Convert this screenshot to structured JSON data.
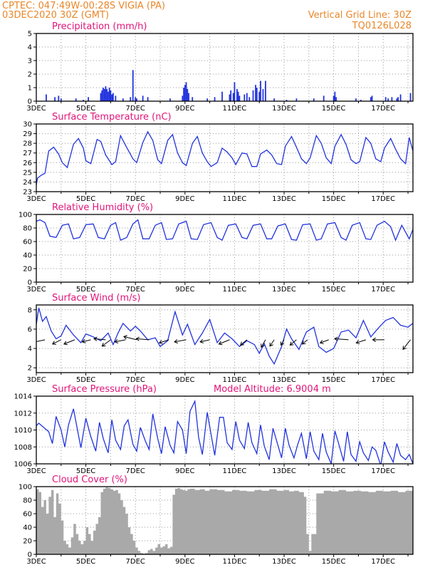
{
  "header": {
    "source_line": "CPTEC:   047:49W-00:28S   VIGIA (PA)",
    "date_line": "03DEC2020 30Z (GMT)",
    "grid_note": "Vertical Grid Line: 30Z",
    "code": "TQ0126L028"
  },
  "x_axis": {
    "labels": [
      "3DEC",
      "5DEC",
      "7DEC",
      "9DEC",
      "11DEC",
      "13DEC",
      "15DEC",
      "17DEC"
    ],
    "label_days": [
      0,
      2,
      4,
      6,
      8,
      10,
      12,
      14
    ],
    "range_days": [
      0,
      15.2
    ]
  },
  "colors": {
    "line": "#2233dd",
    "header": "#e8872a",
    "title": "#e0157a",
    "cloud": "#a9a9a9",
    "grid": "#9a9a9a"
  },
  "chart_data": [
    {
      "type": "bar",
      "title": "Precipitation (mm/h)",
      "ylim": [
        0,
        5
      ],
      "yticks": [
        0,
        1,
        2,
        3,
        4,
        5
      ],
      "x_unit": "days since 3DEC",
      "x": [
        0.4,
        0.75,
        0.9,
        1.0,
        1.6,
        1.9,
        2.1,
        2.6,
        2.65,
        2.7,
        2.75,
        2.8,
        2.85,
        2.9,
        2.95,
        3.0,
        3.05,
        3.1,
        3.2,
        3.5,
        3.8,
        3.9,
        4.0,
        4.05,
        4.3,
        4.5,
        5.4,
        5.9,
        5.95,
        6.0,
        6.05,
        6.1,
        6.15,
        6.3,
        6.9,
        7.2,
        7.5,
        7.8,
        7.85,
        7.95,
        8.0,
        8.1,
        8.15,
        8.2,
        8.4,
        8.5,
        8.6,
        8.75,
        8.85,
        8.9,
        9.0,
        9.05,
        9.15,
        9.25,
        9.6,
        10.1,
        10.5,
        11.2,
        11.6,
        12.0,
        12.05,
        12.1,
        12.9,
        13.1,
        13.5,
        13.55,
        14.1,
        14.2,
        14.35,
        14.55,
        14.6,
        14.7,
        15.1
      ],
      "values": [
        0.5,
        0.3,
        0.4,
        0.2,
        0.2,
        0.1,
        0.3,
        0.6,
        0.8,
        1.0,
        0.9,
        1.1,
        0.9,
        0.7,
        1.0,
        0.8,
        0.5,
        0.6,
        0.4,
        0.2,
        0.3,
        2.3,
        0.3,
        0.2,
        0.4,
        0.3,
        0.2,
        0.4,
        1.0,
        1.2,
        1.4,
        0.9,
        0.6,
        0.3,
        0.2,
        0.3,
        0.7,
        0.5,
        0.8,
        0.6,
        1.4,
        0.9,
        0.7,
        0.4,
        0.5,
        0.6,
        0.3,
        0.8,
        1.2,
        1.0,
        0.7,
        1.5,
        0.9,
        1.5,
        0.2,
        0.1,
        0.2,
        0.2,
        0.4,
        0.4,
        0.7,
        0.3,
        0.2,
        0.1,
        0.3,
        0.4,
        0.3,
        0.2,
        0.3,
        0.2,
        0.3,
        0.5,
        0.6
      ]
    },
    {
      "type": "line",
      "title": "Surface Temperature (nC)",
      "ylim": [
        23,
        30
      ],
      "yticks": [
        23,
        24,
        25,
        26,
        27,
        28,
        29,
        30
      ],
      "x_unit": "days since 3DEC",
      "x": [
        0,
        0.05,
        0.2,
        0.35,
        0.5,
        0.7,
        0.9,
        1.05,
        1.25,
        1.5,
        1.7,
        1.9,
        2.0,
        2.2,
        2.45,
        2.6,
        2.8,
        3.05,
        3.2,
        3.4,
        3.6,
        3.9,
        4.05,
        4.3,
        4.5,
        4.7,
        4.9,
        5.05,
        5.3,
        5.5,
        5.7,
        5.9,
        6.05,
        6.3,
        6.5,
        6.7,
        6.9,
        7.05,
        7.3,
        7.5,
        7.7,
        7.9,
        8.05,
        8.3,
        8.5,
        8.7,
        8.9,
        9.05,
        9.3,
        9.5,
        9.7,
        9.9,
        10.05,
        10.3,
        10.5,
        10.7,
        10.9,
        11.05,
        11.3,
        11.5,
        11.7,
        11.9,
        12.05,
        12.3,
        12.5,
        12.7,
        12.9,
        13.05,
        13.3,
        13.5,
        13.7,
        13.9,
        14.05,
        14.3,
        14.5,
        14.7,
        14.9,
        15.05,
        15.2
      ],
      "values": [
        23.7,
        24.4,
        24.7,
        24.9,
        27.2,
        27.6,
        26.9,
        26.0,
        25.5,
        27.9,
        28.5,
        27.5,
        26.2,
        25.9,
        28.4,
        28.2,
        26.8,
        25.8,
        26.1,
        28.8,
        27.8,
        26.4,
        26.0,
        28.1,
        29.2,
        28.3,
        26.3,
        25.9,
        28.3,
        28.9,
        27.0,
        26.0,
        25.7,
        28.0,
        28.7,
        27.0,
        26.1,
        25.6,
        26.0,
        27.5,
        27.1,
        26.5,
        25.8,
        27.0,
        26.9,
        25.6,
        25.6,
        26.9,
        27.3,
        26.8,
        25.9,
        25.8,
        27.7,
        28.7,
        27.6,
        26.4,
        25.9,
        26.5,
        28.8,
        28.0,
        26.5,
        25.9,
        27.7,
        28.9,
        27.9,
        26.3,
        25.9,
        26.1,
        28.6,
        28.0,
        26.4,
        26.1,
        27.5,
        28.5,
        27.4,
        26.4,
        25.9,
        28.6,
        27.2
      ]
    },
    {
      "type": "line",
      "title": "Relative Humidity (%)",
      "ylim": [
        0,
        100
      ],
      "yticks": [
        0,
        20,
        40,
        60,
        80,
        100
      ],
      "x_unit": "days since 3DEC",
      "x": [
        0,
        0.15,
        0.35,
        0.55,
        0.8,
        1.05,
        1.3,
        1.5,
        1.75,
        2.0,
        2.3,
        2.5,
        2.75,
        3.0,
        3.2,
        3.4,
        3.65,
        3.9,
        4.1,
        4.3,
        4.55,
        4.8,
        5.05,
        5.25,
        5.5,
        5.75,
        6.05,
        6.25,
        6.5,
        6.75,
        7.05,
        7.3,
        7.5,
        7.75,
        8.05,
        8.3,
        8.5,
        8.75,
        9.05,
        9.3,
        9.5,
        9.75,
        10.05,
        10.3,
        10.5,
        10.75,
        11.05,
        11.3,
        11.5,
        11.75,
        12.05,
        12.3,
        12.5,
        12.75,
        13.05,
        13.3,
        13.5,
        13.75,
        14.05,
        14.3,
        14.5,
        14.75,
        15.05,
        15.2
      ],
      "values": [
        90,
        92,
        88,
        68,
        66,
        84,
        86,
        64,
        66,
        85,
        86,
        66,
        64,
        84,
        88,
        62,
        66,
        86,
        92,
        64,
        64,
        84,
        88,
        63,
        64,
        86,
        90,
        64,
        63,
        85,
        88,
        66,
        62,
        84,
        86,
        66,
        64,
        84,
        86,
        64,
        64,
        83,
        86,
        63,
        62,
        85,
        86,
        62,
        64,
        86,
        88,
        66,
        62,
        84,
        88,
        64,
        63,
        84,
        90,
        82,
        62,
        84,
        64,
        78
      ]
    },
    {
      "type": "line",
      "title": "Surface Wind (m/s)",
      "ylim": [
        1.5,
        8.5
      ],
      "yticks": [
        2,
        4,
        6,
        8
      ],
      "x_unit": "days since 3DEC",
      "x": [
        0,
        0.1,
        0.25,
        0.4,
        0.6,
        0.8,
        1.0,
        1.2,
        1.5,
        1.8,
        2.0,
        2.3,
        2.6,
        2.9,
        3.1,
        3.3,
        3.5,
        3.8,
        4.0,
        4.2,
        4.5,
        4.8,
        5.0,
        5.3,
        5.6,
        5.9,
        6.1,
        6.4,
        6.7,
        7.0,
        7.3,
        7.6,
        7.9,
        8.2,
        8.5,
        8.8,
        9.0,
        9.2,
        9.4,
        9.6,
        9.9,
        10.1,
        10.3,
        10.6,
        10.9,
        11.2,
        11.4,
        11.7,
        12.0,
        12.3,
        12.6,
        12.9,
        13.2,
        13.5,
        13.8,
        14.1,
        14.4,
        14.7,
        15.0,
        15.2
      ],
      "values": [
        6.5,
        8.2,
        6.8,
        7.3,
        5.8,
        5.0,
        5.3,
        6.4,
        5.4,
        4.6,
        5.5,
        5.2,
        4.8,
        5.6,
        4.4,
        5.6,
        6.6,
        5.8,
        6.3,
        5.8,
        4.9,
        5.1,
        4.2,
        4.8,
        7.8,
        5.4,
        6.5,
        4.4,
        5.6,
        7.0,
        4.6,
        5.6,
        5.0,
        4.2,
        4.8,
        4.4,
        3.5,
        4.5,
        3.2,
        2.4,
        4.2,
        6.0,
        5.0,
        3.9,
        5.7,
        6.2,
        4.2,
        3.6,
        4.0,
        5.7,
        5.9,
        5.1,
        6.9,
        5.2,
        6.1,
        6.9,
        7.2,
        6.4,
        6.2,
        6.6
      ],
      "vectors": [
        {
          "x": 0.35,
          "u": 5.5,
          "v": -1.2
        },
        {
          "x": 1.0,
          "u": 4.0,
          "v": -2.0
        },
        {
          "x": 1.55,
          "u": 5.0,
          "v": -2.0
        },
        {
          "x": 2.2,
          "u": 4.0,
          "v": -1.0
        },
        {
          "x": 2.8,
          "u": 5.5,
          "v": 0.5
        },
        {
          "x": 3.0,
          "u": 4.0,
          "v": -3.0
        },
        {
          "x": 3.6,
          "u": 5.0,
          "v": -1.0
        },
        {
          "x": 4.05,
          "u": 6.0,
          "v": 1.5
        },
        {
          "x": 4.55,
          "u": 6.0,
          "v": 0.5
        },
        {
          "x": 5.35,
          "u": 4.5,
          "v": -1.5
        },
        {
          "x": 6.05,
          "u": 5.5,
          "v": -1.0
        },
        {
          "x": 7.0,
          "u": 4.5,
          "v": -1.0
        },
        {
          "x": 7.8,
          "u": 5.0,
          "v": -2.0
        },
        {
          "x": 8.5,
          "u": 3.0,
          "v": -2.5
        },
        {
          "x": 9.25,
          "u": 2.0,
          "v": -3.5
        },
        {
          "x": 9.6,
          "u": 2.0,
          "v": -3.0
        },
        {
          "x": 10.0,
          "u": 1.5,
          "v": -2.5
        },
        {
          "x": 10.5,
          "u": 3.0,
          "v": -2.5
        },
        {
          "x": 10.95,
          "u": 2.5,
          "v": -2.0
        },
        {
          "x": 11.8,
          "u": 4.0,
          "v": -1.5
        },
        {
          "x": 12.6,
          "u": 6.5,
          "v": 0.5
        },
        {
          "x": 13.3,
          "u": 4.5,
          "v": -1.5
        },
        {
          "x": 14.05,
          "u": 5.5,
          "v": 0.0
        },
        {
          "x": 15.1,
          "u": 3.5,
          "v": -4.5
        }
      ]
    },
    {
      "type": "line",
      "title": "Surface Pressure (hPa)",
      "annotation": "Model Altitude: 6.9004 m",
      "ylim": [
        1006,
        1014
      ],
      "yticks": [
        1006,
        1008,
        1010,
        1012,
        1014
      ],
      "x_unit": "days since 3DEC",
      "x": [
        0,
        0.1,
        0.3,
        0.5,
        0.65,
        0.8,
        1.0,
        1.15,
        1.3,
        1.5,
        1.65,
        1.8,
        2.0,
        2.2,
        2.4,
        2.55,
        2.7,
        2.9,
        3.05,
        3.2,
        3.4,
        3.55,
        3.7,
        3.9,
        4.05,
        4.2,
        4.4,
        4.55,
        4.7,
        4.9,
        5.05,
        5.2,
        5.4,
        5.55,
        5.7,
        5.9,
        6.05,
        6.2,
        6.4,
        6.55,
        6.7,
        6.9,
        7.05,
        7.2,
        7.4,
        7.55,
        7.7,
        7.9,
        8.05,
        8.2,
        8.4,
        8.55,
        8.7,
        8.9,
        9.05,
        9.2,
        9.4,
        9.55,
        9.7,
        9.9,
        10.05,
        10.2,
        10.4,
        10.55,
        10.7,
        10.9,
        11.05,
        11.2,
        11.4,
        11.55,
        11.7,
        11.9,
        12.05,
        12.2,
        12.4,
        12.55,
        12.7,
        12.9,
        13.05,
        13.2,
        13.4,
        13.55,
        13.7,
        13.9,
        14.05,
        14.2,
        14.4,
        14.55,
        14.7,
        14.9,
        15.05,
        15.2
      ],
      "values": [
        1010.5,
        1010.8,
        1010.3,
        1009.8,
        1008.4,
        1011.6,
        1010.0,
        1008.0,
        1010.6,
        1012.5,
        1010.2,
        1007.9,
        1011.4,
        1009.2,
        1007.5,
        1010.9,
        1009.0,
        1007.3,
        1011.2,
        1008.8,
        1007.7,
        1010.5,
        1011.2,
        1008.3,
        1007.5,
        1010.3,
        1008.7,
        1007.7,
        1011.9,
        1009.0,
        1007.2,
        1010.4,
        1008.2,
        1007.3,
        1011.0,
        1010.0,
        1007.2,
        1012.2,
        1013.4,
        1009.1,
        1007.1,
        1012.1,
        1009.5,
        1007.0,
        1011.5,
        1011.5,
        1008.5,
        1007.7,
        1011.0,
        1008.8,
        1007.8,
        1010.9,
        1008.5,
        1007.2,
        1010.6,
        1008.1,
        1006.5,
        1010.2,
        1008.7,
        1006.7,
        1010.2,
        1008.2,
        1006.7,
        1008.3,
        1009.6,
        1006.6,
        1009.8,
        1007.5,
        1006.5,
        1009.6,
        1007.4,
        1006.0,
        1009.9,
        1008.4,
        1006.3,
        1009.8,
        1007.1,
        1006.3,
        1008.6,
        1007.3,
        1006.4,
        1008.0,
        1007.6,
        1005.8,
        1008.6,
        1007.4,
        1006.2,
        1008.4,
        1007.0,
        1006.5,
        1007.1,
        1006.0
      ]
    },
    {
      "type": "area",
      "title": "Cloud Cover (%)",
      "ylim": [
        0,
        100
      ],
      "yticks": [
        0,
        20,
        40,
        60,
        80,
        100
      ],
      "x_unit": "days since 3DEC",
      "x": [
        0,
        0.1,
        0.2,
        0.3,
        0.4,
        0.5,
        0.6,
        0.7,
        0.8,
        0.9,
        1.0,
        1.1,
        1.2,
        1.3,
        1.4,
        1.5,
        1.6,
        1.7,
        1.8,
        1.9,
        2.0,
        2.1,
        2.2,
        2.3,
        2.4,
        2.5,
        2.6,
        2.7,
        2.8,
        2.9,
        3.0,
        3.1,
        3.2,
        3.3,
        3.4,
        3.5,
        3.6,
        3.7,
        3.8,
        3.9,
        4.0,
        4.1,
        4.2,
        4.3,
        4.4,
        4.5,
        4.6,
        4.7,
        4.8,
        4.9,
        5.0,
        5.1,
        5.2,
        5.3,
        5.4,
        5.5,
        5.6,
        5.7,
        5.8,
        5.9,
        6.0,
        6.1,
        6.2,
        6.4,
        6.6,
        6.8,
        7.0,
        7.3,
        7.6,
        7.9,
        8.2,
        8.5,
        8.8,
        9.1,
        9.4,
        9.7,
        10.0,
        10.2,
        10.4,
        10.6,
        10.8,
        10.9,
        11.0,
        11.1,
        11.3,
        11.6,
        11.9,
        12.2,
        12.5,
        12.8,
        13.1,
        13.4,
        13.7,
        14.0,
        14.3,
        14.6,
        14.9,
        15.2
      ],
      "values": [
        96,
        92,
        70,
        80,
        60,
        85,
        95,
        55,
        90,
        75,
        50,
        20,
        15,
        10,
        25,
        45,
        30,
        20,
        15,
        20,
        40,
        30,
        20,
        35,
        45,
        55,
        92,
        97,
        99,
        98,
        96,
        94,
        95,
        90,
        80,
        70,
        60,
        40,
        30,
        20,
        10,
        5,
        2,
        1,
        2,
        6,
        8,
        5,
        10,
        15,
        10,
        12,
        15,
        9,
        11,
        88,
        97,
        98,
        96,
        95,
        94,
        96,
        97,
        95,
        96,
        94,
        96,
        95,
        93,
        95,
        94,
        93,
        95,
        94,
        96,
        94,
        95,
        93,
        94,
        92,
        85,
        30,
        5,
        30,
        90,
        94,
        93,
        95,
        93,
        94,
        93,
        92,
        94,
        93,
        94,
        92,
        94,
        87
      ]
    }
  ]
}
